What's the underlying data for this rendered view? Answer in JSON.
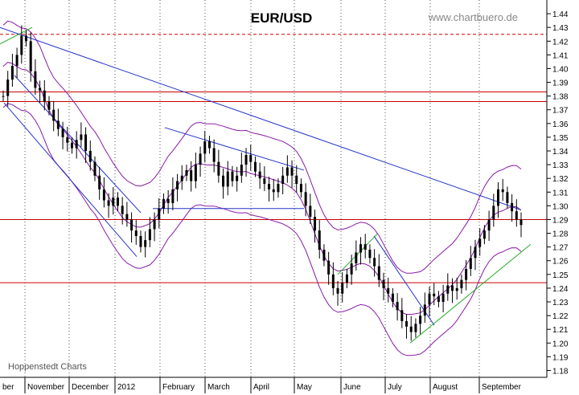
{
  "chart_data": {
    "type": "candlestick",
    "title": "EUR/USD",
    "watermark": "www.chartbuero.de",
    "source_label": "Hoppenstedt Charts",
    "y_axis": {
      "ylim": [
        1.175,
        1.45
      ],
      "ticks": [
        "1.44",
        "1.43",
        "1.42",
        "1.41",
        "1.40",
        "1.39",
        "1.38",
        "1.37",
        "1.36",
        "1.35",
        "1.34",
        "1.33",
        "1.32",
        "1.31",
        "1.30",
        "1.29",
        "1.28",
        "1.27",
        "1.26",
        "1.25",
        "1.24",
        "1.23",
        "1.22",
        "1.21",
        "1.20",
        "1.19",
        "1.18"
      ],
      "side": "right"
    },
    "x_axis": {
      "labels": [
        "ber",
        "November",
        "December",
        "2012",
        "February",
        "March",
        "April",
        "May",
        "June",
        "July",
        "August",
        "September"
      ]
    },
    "price_series": [
      1.38,
      1.392,
      1.402,
      1.41,
      1.424,
      1.42,
      1.398,
      1.386,
      1.384,
      1.376,
      1.37,
      1.362,
      1.356,
      1.35,
      1.346,
      1.342,
      1.348,
      1.352,
      1.34,
      1.332,
      1.322,
      1.312,
      1.304,
      1.3,
      1.306,
      1.3,
      1.294,
      1.29,
      1.282,
      1.278,
      1.27,
      1.275,
      1.283,
      1.29,
      1.298,
      1.305,
      1.302,
      1.312,
      1.318,
      1.322,
      1.326,
      1.318,
      1.33,
      1.338,
      1.347,
      1.342,
      1.332,
      1.322,
      1.314,
      1.325,
      1.318,
      1.322,
      1.33,
      1.337,
      1.332,
      1.325,
      1.32,
      1.316,
      1.312,
      1.31,
      1.316,
      1.322,
      1.328,
      1.322,
      1.316,
      1.31,
      1.3,
      1.292,
      1.282,
      1.268,
      1.26,
      1.25,
      1.24,
      1.236,
      1.244,
      1.25,
      1.258,
      1.266,
      1.272,
      1.268,
      1.262,
      1.256,
      1.246,
      1.24,
      1.236,
      1.23,
      1.224,
      1.216,
      1.212,
      1.208,
      1.214,
      1.22,
      1.228,
      1.236,
      1.234,
      1.23,
      1.236,
      1.242,
      1.238,
      1.24,
      1.246,
      1.254,
      1.262,
      1.27,
      1.276,
      1.282,
      1.29,
      1.3,
      1.312,
      1.31,
      1.302,
      1.296,
      1.29,
      1.286
    ],
    "horizontal_lines": [
      {
        "y": 1.425,
        "color": "#cc0000",
        "style": "dashed"
      },
      {
        "y": 1.383,
        "color": "#cc0000",
        "style": "solid"
      },
      {
        "y": 1.376,
        "color": "#cc0000",
        "style": "solid"
      },
      {
        "y": 1.29,
        "color": "#cc0000",
        "style": "solid"
      },
      {
        "y": 1.244,
        "color": "#cc0000",
        "style": "solid"
      }
    ],
    "colors": {
      "candles": "#000000",
      "bands": "#8a1aa8",
      "trendlines": "#2233cc",
      "support": "#22aa22",
      "levels": "#cc0000",
      "grid": "#555555"
    }
  }
}
